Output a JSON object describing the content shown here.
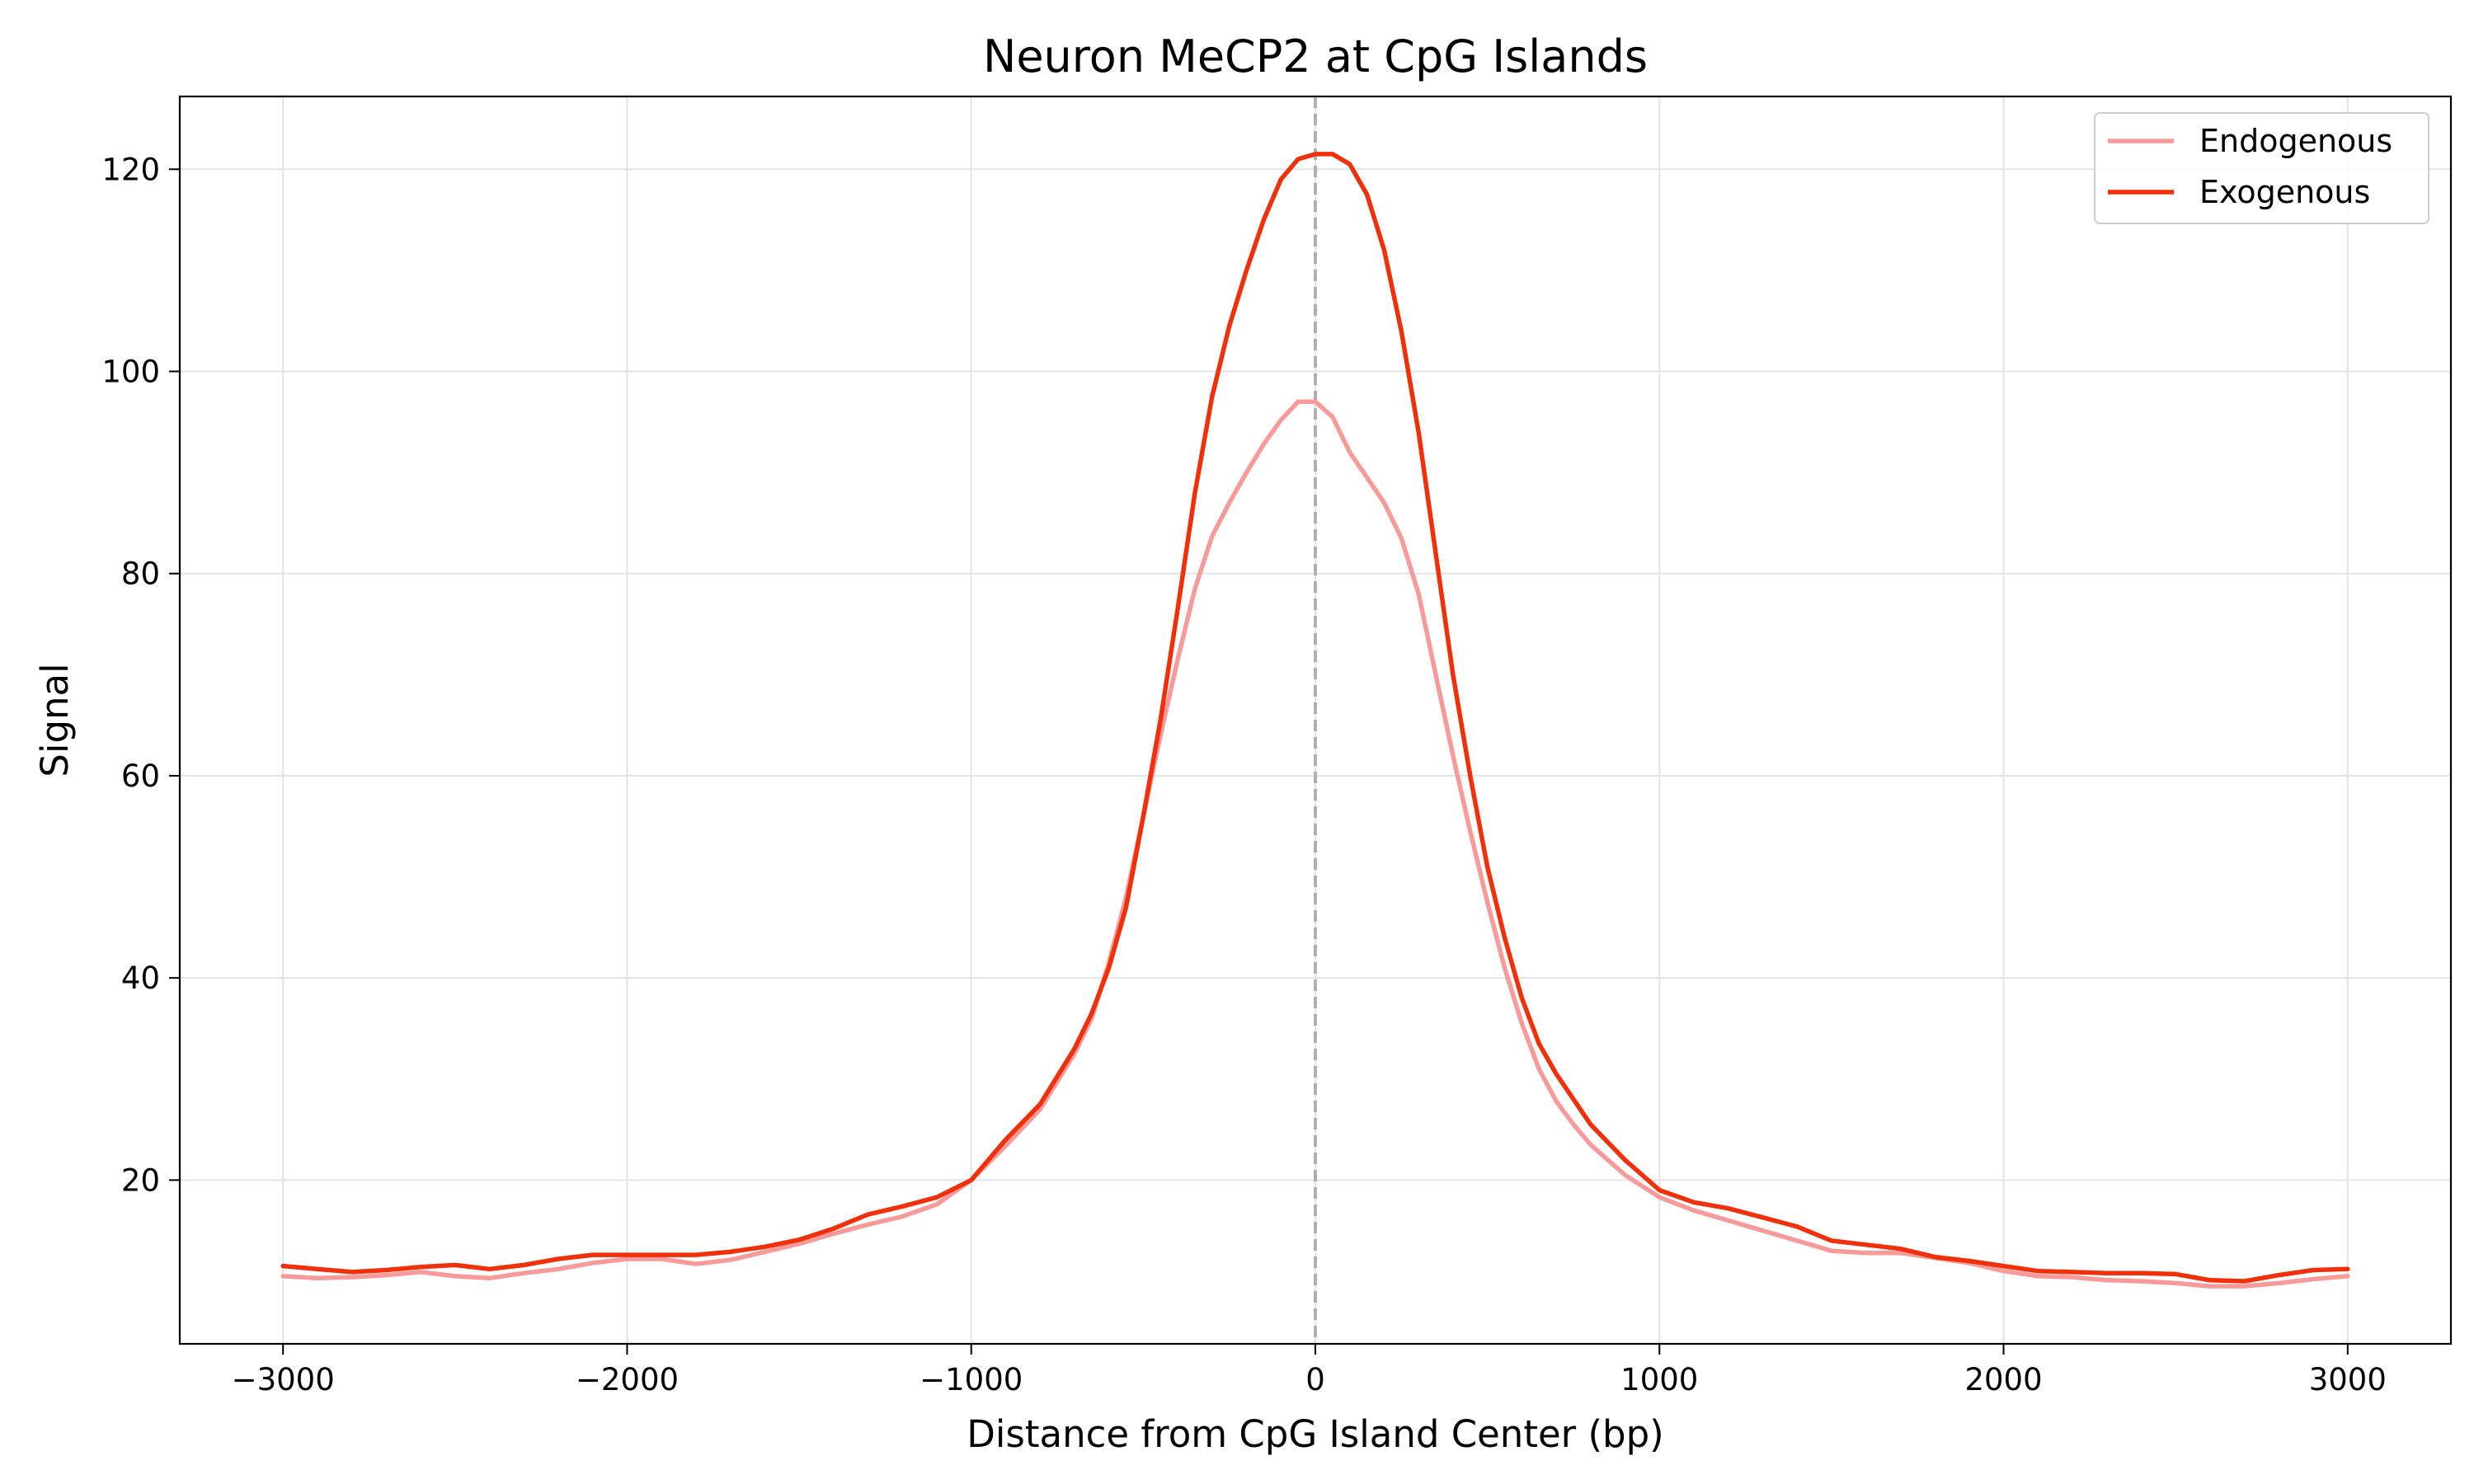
{
  "chart_data": {
    "type": "line",
    "title": "Neuron MeCP2 at CpG Islands",
    "xlabel": "Distance from CpG Island Center (bp)",
    "ylabel": "Signal",
    "xlim": [
      -3300,
      3300
    ],
    "ylim": [
      3.8,
      127.2
    ],
    "xticks": [
      -3000,
      -2000,
      -1000,
      0,
      1000,
      2000,
      3000
    ],
    "xtick_labels": [
      "−3000",
      "−2000",
      "−1000",
      "0",
      "1000",
      "2000",
      "3000"
    ],
    "yticks": [
      20,
      40,
      60,
      80,
      100,
      120
    ],
    "ytick_labels": [
      "20",
      "40",
      "60",
      "80",
      "100",
      "120"
    ],
    "grid": true,
    "legend_position": "top-right",
    "reference_line": {
      "x": 0,
      "style": "dashed",
      "color": "#b0b0b0"
    },
    "x": [
      -3000,
      -2900,
      -2800,
      -2700,
      -2600,
      -2500,
      -2400,
      -2300,
      -2200,
      -2100,
      -2000,
      -1900,
      -1800,
      -1700,
      -1600,
      -1500,
      -1400,
      -1300,
      -1200,
      -1100,
      -1000,
      -900,
      -800,
      -700,
      -650,
      -600,
      -550,
      -500,
      -450,
      -400,
      -350,
      -300,
      -250,
      -200,
      -150,
      -100,
      -50,
      0,
      50,
      100,
      150,
      200,
      250,
      300,
      350,
      400,
      450,
      500,
      550,
      600,
      650,
      700,
      750,
      800,
      900,
      1000,
      1100,
      1200,
      1300,
      1400,
      1500,
      1600,
      1700,
      1800,
      1900,
      2000,
      2100,
      2200,
      2300,
      2400,
      2500,
      2600,
      2700,
      2800,
      2900,
      3000
    ],
    "series": [
      {
        "name": "Endogenous",
        "color": "#f89a9a",
        "values": [
          10.5,
          10.3,
          10.4,
          10.6,
          10.9,
          10.5,
          10.3,
          10.8,
          11.2,
          11.8,
          12.2,
          12.2,
          11.7,
          12.1,
          12.9,
          13.7,
          14.7,
          15.6,
          16.4,
          17.6,
          20.0,
          23.4,
          27.0,
          32.5,
          36.0,
          41.5,
          48.0,
          56.0,
          64.0,
          71.5,
          78.5,
          83.7,
          87.0,
          90.0,
          92.8,
          95.2,
          97.0,
          97.0,
          95.5,
          92.0,
          89.5,
          87.0,
          83.5,
          78.0,
          70.0,
          62.0,
          54.5,
          47.5,
          41.0,
          35.5,
          31.0,
          27.8,
          25.5,
          23.5,
          20.5,
          18.3,
          17.0,
          16.0,
          15.0,
          14.0,
          13.0,
          12.8,
          12.8,
          12.3,
          11.8,
          11.0,
          10.5,
          10.4,
          10.1,
          10.0,
          9.8,
          9.5,
          9.5,
          9.8,
          10.2,
          10.5
        ]
      },
      {
        "name": "Exogenous",
        "color": "#f0300a",
        "values": [
          11.5,
          11.2,
          10.9,
          11.1,
          11.4,
          11.6,
          11.2,
          11.6,
          12.2,
          12.6,
          12.6,
          12.6,
          12.6,
          12.9,
          13.4,
          14.1,
          15.2,
          16.6,
          17.4,
          18.3,
          20.0,
          24.0,
          27.5,
          33.0,
          36.5,
          41.0,
          47.0,
          56.0,
          65.5,
          76.5,
          88.0,
          97.5,
          104.5,
          110.0,
          115.0,
          119.0,
          121.0,
          121.5,
          121.5,
          120.5,
          117.5,
          112.0,
          104.0,
          94.0,
          82.0,
          70.0,
          60.0,
          51.0,
          44.0,
          38.0,
          33.5,
          30.5,
          28.0,
          25.5,
          22.0,
          19.0,
          17.8,
          17.2,
          16.3,
          15.4,
          14.0,
          13.6,
          13.2,
          12.4,
          12.0,
          11.5,
          11.0,
          10.9,
          10.8,
          10.8,
          10.7,
          10.1,
          10.0,
          10.6,
          11.1,
          11.2
        ]
      }
    ]
  }
}
